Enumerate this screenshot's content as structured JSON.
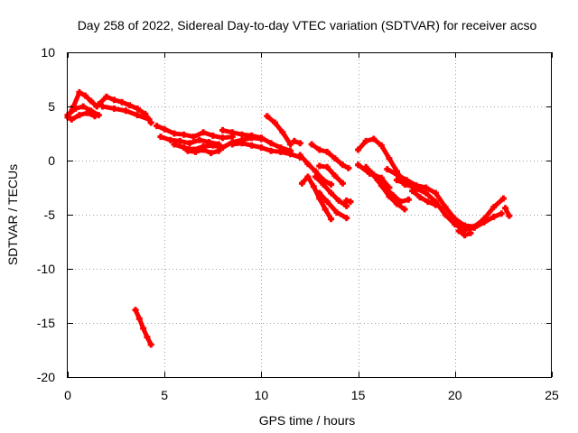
{
  "chart_data": {
    "type": "scatter",
    "title": "Day 258 of 2022, Sidereal Day-to-day VTEC variation (SDTVAR) for receiver acso",
    "xlabel": "GPS time / hours",
    "ylabel": "SDTVAR / TECUs",
    "xlim": [
      0,
      25
    ],
    "ylim": [
      -20,
      10
    ],
    "xticks": [
      0,
      5,
      10,
      15,
      20,
      25
    ],
    "yticks": [
      10,
      5,
      0,
      -5,
      -10,
      -15,
      -20
    ],
    "grid": true,
    "series": [
      {
        "name": "SDTVAR",
        "color": "#ff0000",
        "tracks": [
          {
            "x": [
              0.0,
              0.3,
              0.6,
              0.9,
              1.2,
              1.5
            ],
            "y": [
              4.0,
              5.0,
              6.3,
              6.0,
              5.5,
              5.0
            ]
          },
          {
            "x": [
              0.0,
              0.4,
              0.8,
              1.2,
              1.6
            ],
            "y": [
              4.2,
              4.8,
              5.0,
              4.6,
              4.2
            ]
          },
          {
            "x": [
              0.2,
              0.6,
              1.0,
              1.4
            ],
            "y": [
              3.8,
              4.2,
              4.4,
              4.1
            ]
          },
          {
            "x": [
              1.6,
              2.0,
              2.4,
              2.8,
              3.2,
              3.6,
              4.0,
              4.3
            ],
            "y": [
              5.2,
              5.9,
              5.6,
              5.4,
              5.1,
              4.8,
              4.3,
              3.5
            ]
          },
          {
            "x": [
              1.8,
              2.4,
              3.0,
              3.6,
              4.2
            ],
            "y": [
              5.0,
              4.8,
              4.6,
              4.2,
              3.8
            ]
          },
          {
            "x": [
              4.6,
              5.0,
              5.5,
              6.0,
              6.5,
              7.0,
              7.5,
              8.0,
              8.5
            ],
            "y": [
              3.2,
              2.9,
              2.5,
              2.4,
              2.2,
              2.6,
              2.3,
              2.1,
              2.2
            ]
          },
          {
            "x": [
              4.8,
              5.3,
              5.8,
              6.3,
              6.8,
              7.3,
              7.8
            ],
            "y": [
              2.2,
              1.9,
              1.8,
              1.6,
              1.9,
              1.7,
              1.5
            ]
          },
          {
            "x": [
              5.5,
              6.0,
              6.5,
              7.0,
              7.5,
              8.0,
              8.5,
              9.0,
              9.5,
              10.0
            ],
            "y": [
              1.5,
              1.2,
              1.0,
              1.3,
              1.4,
              1.2,
              1.7,
              1.9,
              2.1,
              2.0
            ]
          },
          {
            "x": [
              6.2,
              6.6,
              7.0,
              7.4,
              7.8
            ],
            "y": [
              0.9,
              0.8,
              1.0,
              0.7,
              0.9
            ]
          },
          {
            "x": [
              8.0,
              8.5,
              9.0,
              9.5,
              10.0,
              10.5,
              11.0,
              11.5
            ],
            "y": [
              2.8,
              2.6,
              2.4,
              2.3,
              2.1,
              1.6,
              1.2,
              0.9
            ]
          },
          {
            "x": [
              8.5,
              9.0,
              9.5,
              10.0,
              10.5,
              11.0,
              11.5,
              12.0
            ],
            "y": [
              1.5,
              1.6,
              1.4,
              1.2,
              0.9,
              0.8,
              0.6,
              0.3
            ]
          },
          {
            "x": [
              10.3,
              10.7,
              11.1,
              11.5
            ],
            "y": [
              4.1,
              3.5,
              2.6,
              1.5
            ]
          },
          {
            "x": [
              11.7,
              12.0
            ],
            "y": [
              1.8,
              1.6
            ]
          },
          {
            "x": [
              12.6,
              13.0,
              13.4,
              13.8,
              14.2,
              14.5
            ],
            "y": [
              1.5,
              1.0,
              0.8,
              0.2,
              -0.4,
              -0.7
            ]
          },
          {
            "x": [
              12.0,
              12.4,
              12.8,
              13.2,
              13.6
            ],
            "y": [
              0.5,
              -0.3,
              -1.0,
              -1.8,
              -2.2
            ]
          },
          {
            "x": [
              12.1,
              12.4,
              12.7,
              13.0,
              13.3,
              13.6
            ],
            "y": [
              -2.1,
              -1.5,
              -2.4,
              -3.5,
              -4.5,
              -5.4
            ]
          },
          {
            "x": [
              12.8,
              13.2,
              13.6,
              14.0,
              14.4
            ],
            "y": [
              -1.5,
              -2.2,
              -3.0,
              -3.7,
              -4.2
            ]
          },
          {
            "x": [
              13.0,
              13.4,
              13.8,
              14.2
            ],
            "y": [
              -0.5,
              -0.6,
              -1.4,
              -2.1
            ]
          },
          {
            "x": [
              13.0,
              13.4,
              13.9,
              14.4
            ],
            "y": [
              -3.0,
              -3.8,
              -4.8,
              -5.3
            ]
          },
          {
            "x": [
              14.4,
              14.6
            ],
            "y": [
              -3.7,
              -3.8
            ]
          },
          {
            "x": [
              15.0,
              15.4,
              15.8,
              16.2,
              16.6,
              17.0,
              17.4
            ],
            "y": [
              1.0,
              1.8,
              2.0,
              1.4,
              0.2,
              -1.0,
              -2.2
            ]
          },
          {
            "x": [
              15.0,
              15.6,
              16.2,
              16.6
            ],
            "y": [
              -0.4,
              -1.2,
              -1.6,
              -2.5
            ]
          },
          {
            "x": [
              15.4,
              15.8,
              16.2,
              16.6,
              17.0,
              17.4
            ],
            "y": [
              -0.6,
              -1.3,
              -2.3,
              -3.3,
              -4.0,
              -4.5
            ]
          },
          {
            "x": [
              15.6,
              16.0,
              16.4,
              16.8,
              17.2,
              17.6
            ],
            "y": [
              -1.0,
              -1.8,
              -2.5,
              -3.2,
              -3.8,
              -3.6
            ]
          },
          {
            "x": [
              16.5,
              17.0,
              17.5,
              18.0,
              18.5,
              19.0,
              19.5,
              20.0,
              20.5,
              21.0,
              21.5,
              22.0,
              22.5
            ],
            "y": [
              -0.8,
              -1.3,
              -1.8,
              -2.3,
              -2.5,
              -3.0,
              -4.3,
              -5.4,
              -6.0,
              -6.1,
              -5.4,
              -4.3,
              -3.5
            ]
          },
          {
            "x": [
              17.0,
              17.5,
              18.0,
              18.5,
              19.0,
              19.5,
              20.0,
              20.5,
              21.0,
              21.5,
              22.0,
              22.4
            ],
            "y": [
              -1.8,
              -2.2,
              -2.6,
              -3.0,
              -3.8,
              -5.0,
              -5.9,
              -6.4,
              -6.2,
              -5.7,
              -5.2,
              -4.9
            ]
          },
          {
            "x": [
              17.8,
              18.2,
              18.6,
              19.0
            ],
            "y": [
              -2.8,
              -3.4,
              -3.8,
              -4.1
            ]
          },
          {
            "x": [
              20.2,
              20.5,
              20.8
            ],
            "y": [
              -6.5,
              -6.9,
              -6.7
            ]
          },
          {
            "x": [
              22.6,
              22.8
            ],
            "y": [
              -4.4,
              -5.1
            ]
          },
          {
            "x": [
              3.5,
              3.7,
              3.9,
              4.1,
              4.3
            ],
            "y": [
              -13.8,
              -14.6,
              -15.5,
              -16.3,
              -17.0
            ]
          }
        ]
      }
    ]
  }
}
